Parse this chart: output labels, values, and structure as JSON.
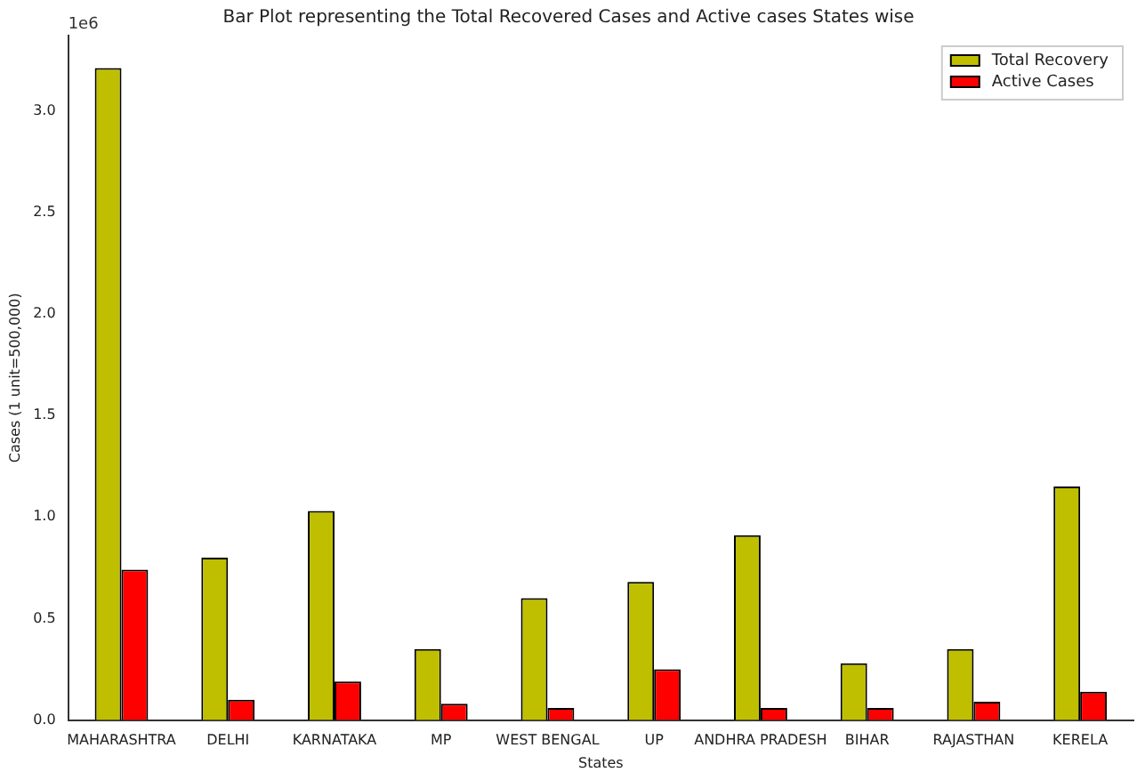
{
  "chart_data": {
    "type": "bar",
    "title": "Bar Plot representing the Total Recovered Cases and Active cases States wise",
    "xlabel": "States",
    "ylabel": "Cases (1 unit=500,000)",
    "categories": [
      "MAHARASHTRA",
      "DELHI",
      "KARNATAKA",
      "MP",
      "WEST BENGAL",
      "UP",
      "ANDHRA PRADESH",
      "BIHAR",
      "RAJASTHAN",
      "KERELA"
    ],
    "series": [
      {
        "name": "Total Recovery",
        "color": "#bfbf00",
        "values": [
          3.21,
          0.8,
          1.03,
          0.35,
          0.6,
          0.68,
          0.91,
          0.28,
          0.35,
          1.15
        ]
      },
      {
        "name": "Active Cases",
        "color": "#ff0000",
        "values": [
          0.74,
          0.1,
          0.19,
          0.08,
          0.06,
          0.25,
          0.06,
          0.06,
          0.09,
          0.14
        ]
      }
    ],
    "ylim": [
      0,
      3.37
    ],
    "yticks": [
      {
        "value": 0,
        "label": "0.0"
      },
      0.5,
      {
        "value": 1,
        "label": "1.0"
      },
      1.5,
      {
        "value": 2,
        "label": "2.0"
      },
      2.5,
      {
        "value": 3,
        "label": "3.0"
      }
    ],
    "annotations": [
      "1e6"
    ],
    "legend": "top right",
    "grid": false
  }
}
